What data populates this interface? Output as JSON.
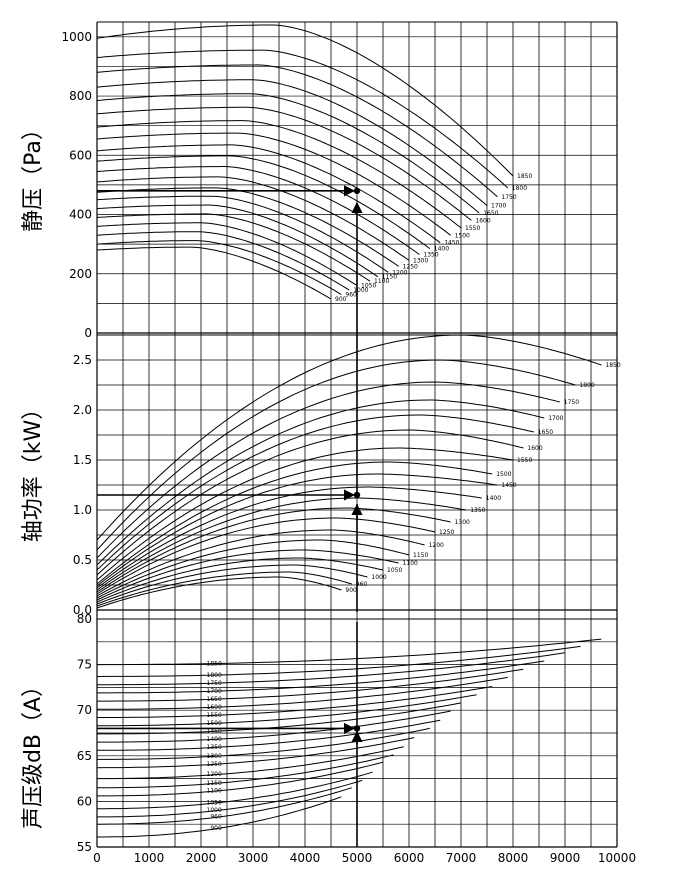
{
  "chart_data": {
    "type": "line",
    "x": {
      "ticks": [
        0,
        1000,
        2000,
        3000,
        4000,
        5000,
        6000,
        7000,
        8000,
        9000,
        10000
      ],
      "range": [
        0,
        10000
      ]
    },
    "panels": [
      {
        "key": "pressure",
        "ylabel": "静压（Pa）",
        "ylim": [
          0,
          1050
        ],
        "ticks": [
          0,
          200,
          400,
          600,
          800,
          1000
        ],
        "tick_labels": [
          "0",
          "200",
          "400",
          "600",
          "800",
          "1000"
        ],
        "curve_labels": [
          "900",
          "960",
          "1000",
          "1050",
          "1100",
          "1150",
          "1200",
          "1250",
          "1300",
          "1350",
          "1400",
          "1450",
          "1500",
          "1550",
          "1600",
          "1650",
          "1700",
          "1750",
          "1800",
          "1850"
        ],
        "series": [
          {
            "label": "900",
            "y0": 280,
            "ypeak": 290,
            "xpeak": 1800,
            "xend": 4500,
            "yend": 115
          },
          {
            "label": "960",
            "y0": 300,
            "ypeak": 312,
            "xpeak": 1900,
            "xend": 4700,
            "yend": 130
          },
          {
            "label": "1000",
            "y0": 330,
            "ypeak": 342,
            "xpeak": 1950,
            "xend": 4850,
            "yend": 145
          },
          {
            "label": "1050",
            "y0": 360,
            "ypeak": 372,
            "xpeak": 2000,
            "xend": 5000,
            "yend": 160
          },
          {
            "label": "1100",
            "y0": 390,
            "ypeak": 402,
            "xpeak": 2100,
            "xend": 5250,
            "yend": 175
          },
          {
            "label": "1150",
            "y0": 420,
            "ypeak": 432,
            "xpeak": 2150,
            "xend": 5400,
            "yend": 190
          },
          {
            "label": "1200",
            "y0": 450,
            "ypeak": 462,
            "xpeak": 2200,
            "xend": 5600,
            "yend": 205
          },
          {
            "label": "1250",
            "y0": 475,
            "ypeak": 490,
            "xpeak": 2300,
            "xend": 5800,
            "yend": 225
          },
          {
            "label": "1300",
            "y0": 510,
            "ypeak": 527,
            "xpeak": 2350,
            "xend": 6000,
            "yend": 245
          },
          {
            "label": "1350",
            "y0": 545,
            "ypeak": 562,
            "xpeak": 2450,
            "xend": 6200,
            "yend": 265
          },
          {
            "label": "1400",
            "y0": 580,
            "ypeak": 598,
            "xpeak": 2550,
            "xend": 6400,
            "yend": 285
          },
          {
            "label": "1450",
            "y0": 615,
            "ypeak": 635,
            "xpeak": 2600,
            "xend": 6600,
            "yend": 305
          },
          {
            "label": "1500",
            "y0": 655,
            "ypeak": 675,
            "xpeak": 2700,
            "xend": 6800,
            "yend": 330
          },
          {
            "label": "1550",
            "y0": 695,
            "ypeak": 717,
            "xpeak": 2800,
            "xend": 7000,
            "yend": 355
          },
          {
            "label": "1600",
            "y0": 740,
            "ypeak": 762,
            "xpeak": 2900,
            "xend": 7200,
            "yend": 380
          },
          {
            "label": "1650",
            "y0": 785,
            "ypeak": 808,
            "xpeak": 2950,
            "xend": 7350,
            "yend": 405
          },
          {
            "label": "1700",
            "y0": 830,
            "ypeak": 855,
            "xpeak": 3000,
            "xend": 7500,
            "yend": 430
          },
          {
            "label": "1750",
            "y0": 880,
            "ypeak": 905,
            "xpeak": 3100,
            "xend": 7700,
            "yend": 460
          },
          {
            "label": "1800",
            "y0": 930,
            "ypeak": 955,
            "xpeak": 3200,
            "xend": 7900,
            "yend": 490
          },
          {
            "label": "1850",
            "y0": 995,
            "ypeak": 1040,
            "xpeak": 3400,
            "xend": 8000,
            "yend": 530
          }
        ],
        "operating_point": {
          "x": 5000,
          "y": 480
        }
      },
      {
        "key": "power",
        "ylabel": "轴功率（kW）",
        "ylim": [
          0,
          2.75
        ],
        "ticks": [
          0,
          0.5,
          1.0,
          1.5,
          2.0,
          2.5
        ],
        "tick_labels": [
          "0.0",
          "0.5",
          "1.0",
          "1.5",
          "2.0",
          "2.5"
        ],
        "curve_labels": [
          "900",
          "960",
          "1000",
          "1050",
          "1100",
          "1150",
          "1200",
          "1250",
          "1300",
          "1350",
          "1400",
          "1450",
          "1500",
          "1550",
          "1600",
          "1650",
          "1700",
          "1750",
          "1800",
          "1850"
        ],
        "series": [
          {
            "label": "900",
            "y0": 0.02,
            "ypeak": 0.33,
            "xpeak": 3500,
            "xend": 4700,
            "yend": 0.2
          },
          {
            "label": "960",
            "y0": 0.04,
            "ypeak": 0.38,
            "xpeak": 3700,
            "xend": 4900,
            "yend": 0.26
          },
          {
            "label": "1000",
            "y0": 0.06,
            "ypeak": 0.45,
            "xpeak": 3800,
            "xend": 5200,
            "yend": 0.33
          },
          {
            "label": "1050",
            "y0": 0.08,
            "ypeak": 0.52,
            "xpeak": 3900,
            "xend": 5500,
            "yend": 0.4
          },
          {
            "label": "1100",
            "y0": 0.1,
            "ypeak": 0.6,
            "xpeak": 4000,
            "xend": 5800,
            "yend": 0.47
          },
          {
            "label": "1150",
            "y0": 0.12,
            "ypeak": 0.7,
            "xpeak": 4300,
            "xend": 6000,
            "yend": 0.55
          },
          {
            "label": "1200",
            "y0": 0.14,
            "ypeak": 0.8,
            "xpeak": 4500,
            "xend": 6300,
            "yend": 0.65
          },
          {
            "label": "1250",
            "y0": 0.16,
            "ypeak": 0.92,
            "xpeak": 4600,
            "xend": 6500,
            "yend": 0.78
          },
          {
            "label": "1300",
            "y0": 0.18,
            "ypeak": 1.02,
            "xpeak": 4800,
            "xend": 6800,
            "yend": 0.88
          },
          {
            "label": "1350",
            "y0": 0.2,
            "ypeak": 1.12,
            "xpeak": 5000,
            "xend": 7100,
            "yend": 1.0
          },
          {
            "label": "1400",
            "y0": 0.22,
            "ypeak": 1.23,
            "xpeak": 5200,
            "xend": 7400,
            "yend": 1.12
          },
          {
            "label": "1450",
            "y0": 0.24,
            "ypeak": 1.36,
            "xpeak": 5400,
            "xend": 7700,
            "yend": 1.25
          },
          {
            "label": "1500",
            "y0": 0.26,
            "ypeak": 1.48,
            "xpeak": 5600,
            "xend": 7600,
            "yend": 1.36
          },
          {
            "label": "1550",
            "y0": 0.3,
            "ypeak": 1.62,
            "xpeak": 5800,
            "xend": 8000,
            "yend": 1.5
          },
          {
            "label": "1600",
            "y0": 0.35,
            "ypeak": 1.8,
            "xpeak": 6000,
            "xend": 8200,
            "yend": 1.62
          },
          {
            "label": "1650",
            "y0": 0.4,
            "ypeak": 1.95,
            "xpeak": 6200,
            "xend": 8400,
            "yend": 1.78
          },
          {
            "label": "1700",
            "y0": 0.45,
            "ypeak": 2.1,
            "xpeak": 6400,
            "xend": 8600,
            "yend": 1.92
          },
          {
            "label": "1750",
            "y0": 0.52,
            "ypeak": 2.28,
            "xpeak": 6500,
            "xend": 8900,
            "yend": 2.08
          },
          {
            "label": "1800",
            "y0": 0.6,
            "ypeak": 2.5,
            "xpeak": 6600,
            "xend": 9200,
            "yend": 2.25
          },
          {
            "label": "1850",
            "y0": 0.7,
            "ypeak": 2.75,
            "xpeak": 7000,
            "xend": 9700,
            "yend": 2.45
          }
        ],
        "operating_point": {
          "x": 5000,
          "y": 1.15
        }
      },
      {
        "key": "sound",
        "ylabel": "声压级dB（A）",
        "ylim": [
          55,
          80
        ],
        "ticks": [
          55,
          60,
          65,
          70,
          75,
          80
        ],
        "tick_labels": [
          "55",
          "60",
          "65",
          "70",
          "75",
          "80"
        ],
        "curve_labels": [
          "900",
          "960",
          "1000",
          "1050",
          "1100",
          "1150",
          "1200",
          "1250",
          "1300",
          "1350",
          "1400",
          "1450",
          "1500",
          "1550",
          "1600",
          "1650",
          "1700",
          "1750",
          "1800",
          "1850"
        ],
        "series": [
          {
            "label": "900",
            "y0": 56.1,
            "xend": 4700,
            "yend": 60.5
          },
          {
            "label": "960",
            "y0": 57.5,
            "xend": 4900,
            "yend": 61.5
          },
          {
            "label": "1000",
            "y0": 58.3,
            "xend": 5100,
            "yend": 62.3
          },
          {
            "label": "1050",
            "y0": 59.2,
            "xend": 5300,
            "yend": 63.2
          },
          {
            "label": "1100",
            "y0": 60.6,
            "xend": 5500,
            "yend": 64.3
          },
          {
            "label": "1150",
            "y0": 61.5,
            "xend": 5700,
            "yend": 65.1
          },
          {
            "label": "1200",
            "y0": 62.5,
            "xend": 5900,
            "yend": 66.0
          },
          {
            "label": "1250",
            "y0": 63.7,
            "xend": 6100,
            "yend": 67.0
          },
          {
            "label": "1300",
            "y0": 64.6,
            "xend": 6400,
            "yend": 68.0
          },
          {
            "label": "1350",
            "y0": 65.6,
            "xend": 6600,
            "yend": 68.9
          },
          {
            "label": "1400",
            "y0": 66.5,
            "xend": 6800,
            "yend": 69.9
          },
          {
            "label": "1450",
            "y0": 67.4,
            "xend": 7000,
            "yend": 70.8
          },
          {
            "label": "1500",
            "y0": 68.3,
            "xend": 7300,
            "yend": 71.7
          },
          {
            "label": "1550",
            "y0": 69.2,
            "xend": 7600,
            "yend": 72.6
          },
          {
            "label": "1600",
            "y0": 70.1,
            "xend": 7900,
            "yend": 73.6
          },
          {
            "label": "1650",
            "y0": 71.0,
            "xend": 8200,
            "yend": 74.5
          },
          {
            "label": "1700",
            "y0": 71.9,
            "xend": 8600,
            "yend": 75.4
          },
          {
            "label": "1750",
            "y0": 72.8,
            "xend": 9000,
            "yend": 76.3
          },
          {
            "label": "1800",
            "y0": 73.7,
            "xend": 9300,
            "yend": 77.0
          },
          {
            "label": "1850",
            "y0": 75.0,
            "xend": 9700,
            "yend": 77.8
          }
        ],
        "operating_point": {
          "x": 5000,
          "y": 68
        }
      }
    ]
  }
}
